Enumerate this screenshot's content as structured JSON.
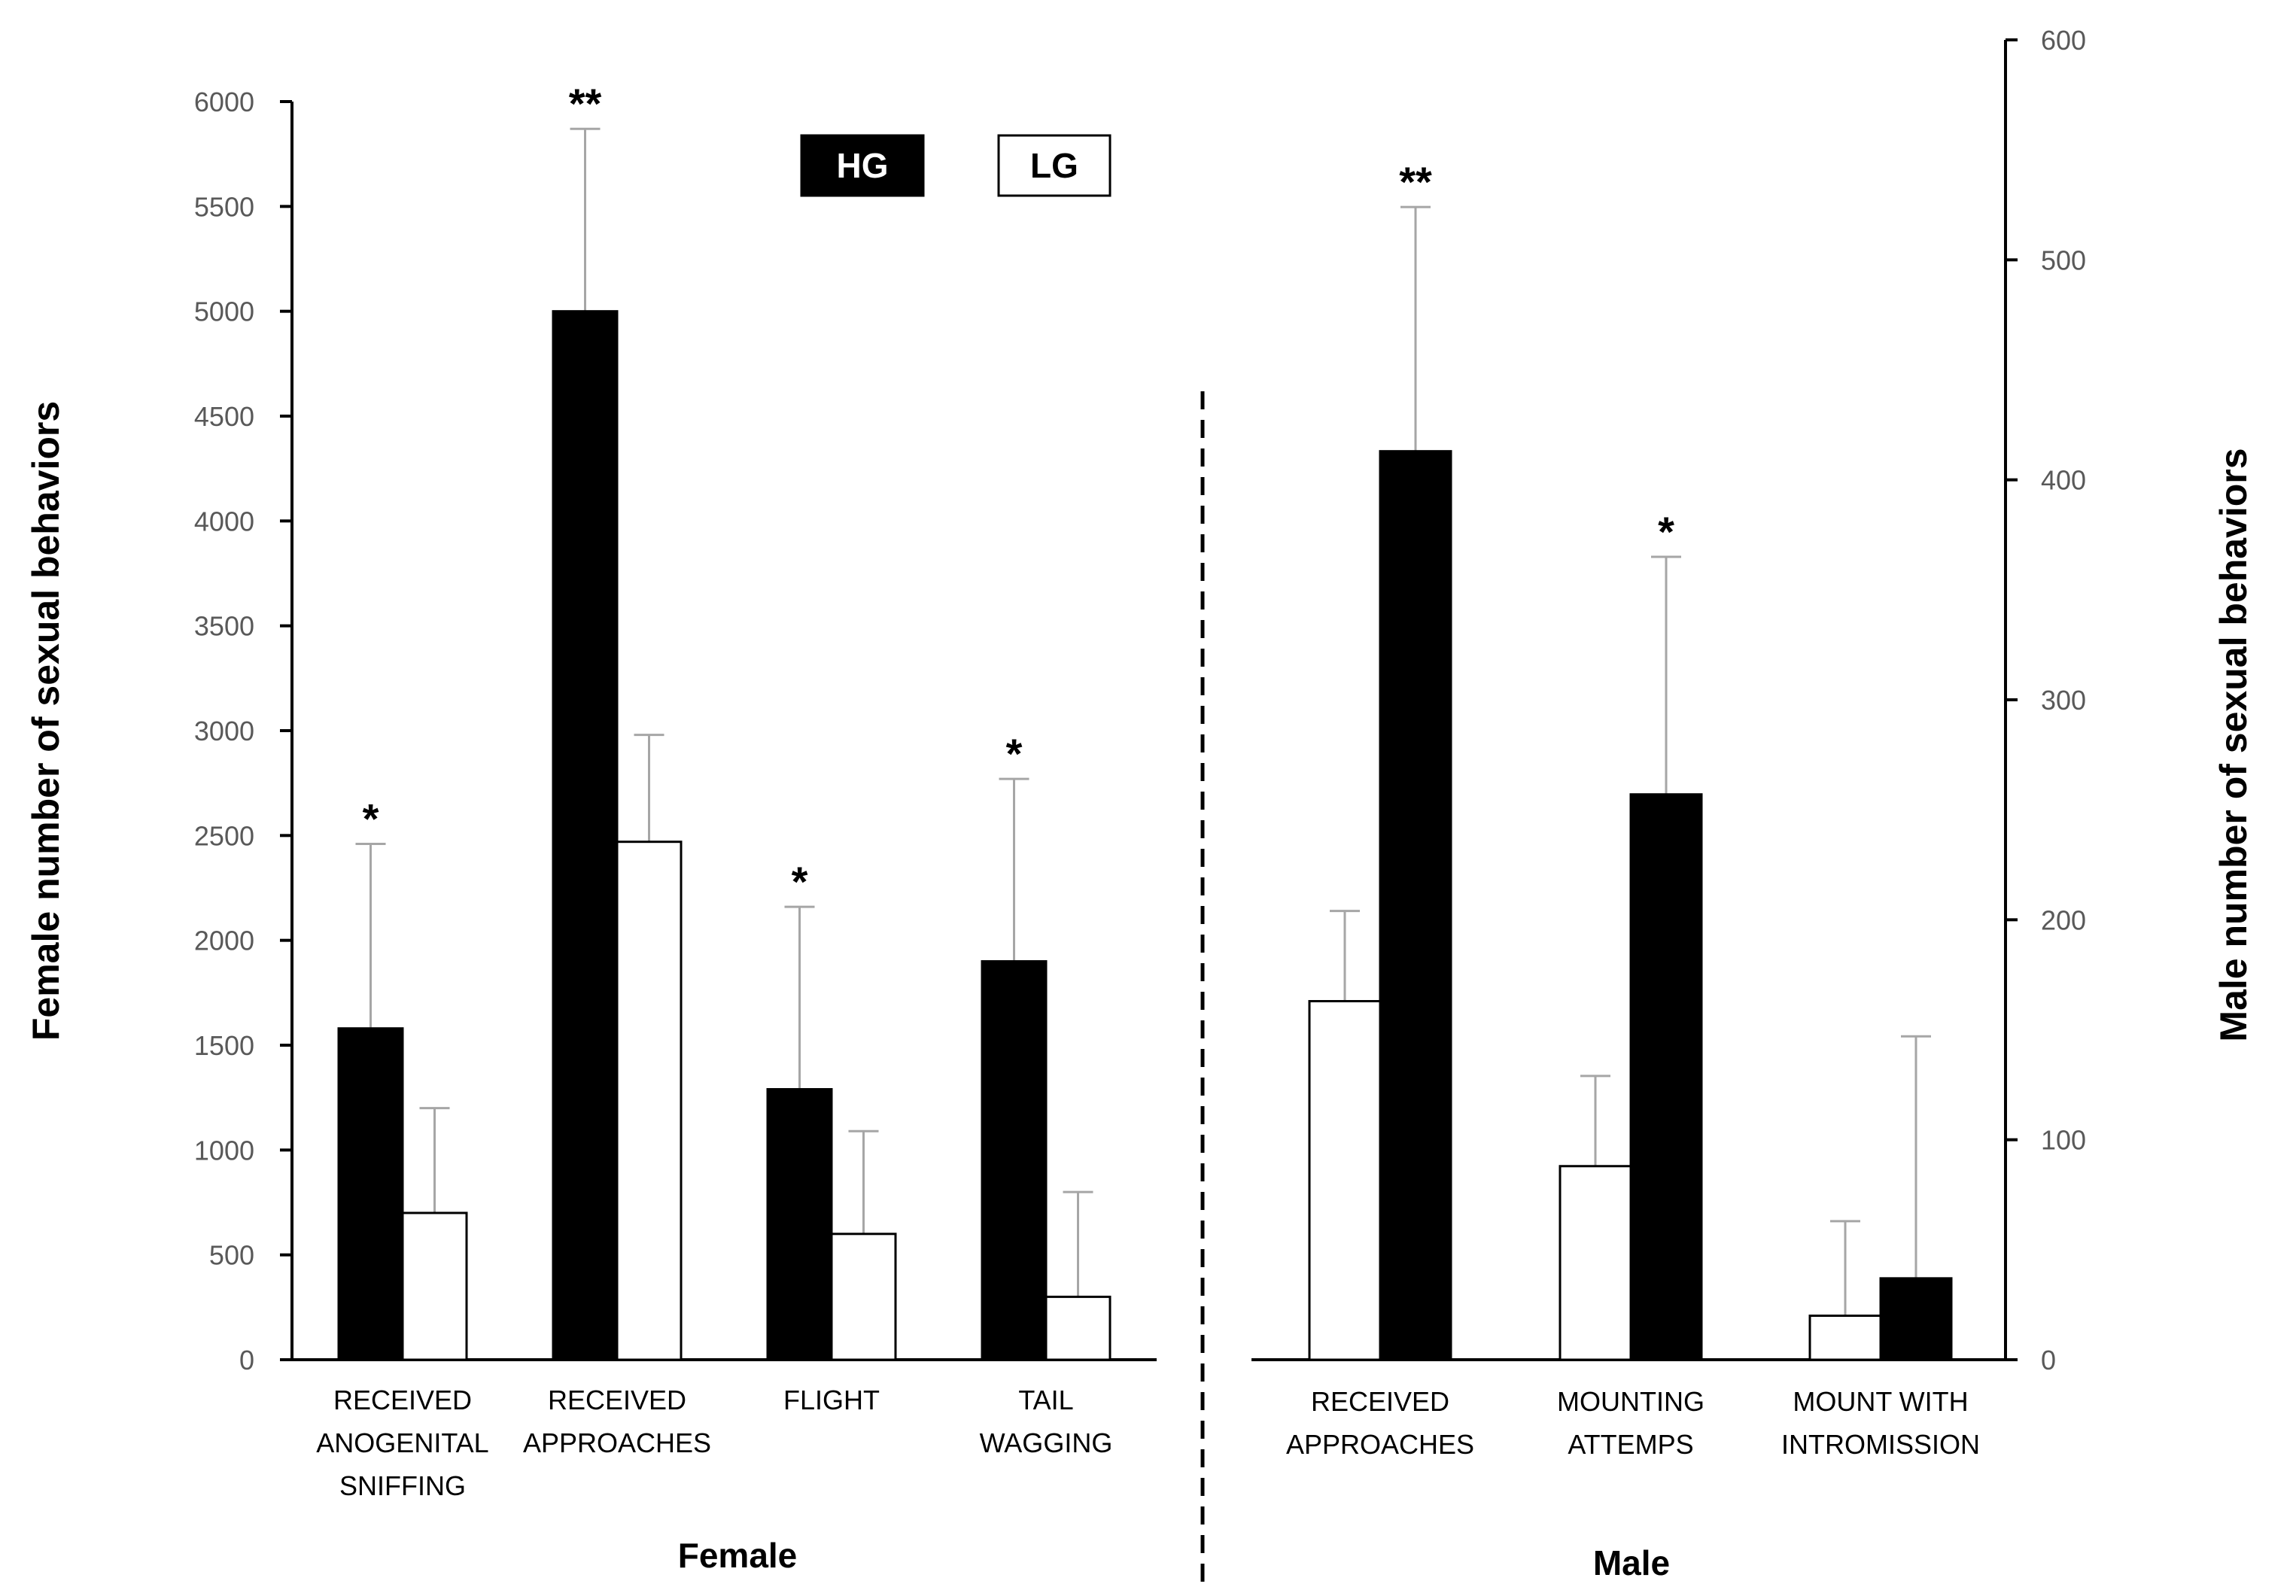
{
  "chart_data": [
    {
      "type": "bar",
      "panel": "Female",
      "xlabel": "Female",
      "ylabel": "Female number of sexual behaviors",
      "ylim": [
        0,
        6000
      ],
      "yticks": [
        0,
        500,
        1000,
        1500,
        2000,
        2500,
        3000,
        3500,
        4000,
        4500,
        5000,
        5500,
        6000
      ],
      "categories": [
        [
          "RECEIVED",
          "ANOGENITAL",
          "SNIFFING"
        ],
        [
          "RECEIVED",
          "APPROACHES"
        ],
        [
          "FLIGHT"
        ],
        [
          "TAIL",
          "WAGGING"
        ]
      ],
      "series": [
        {
          "name": "HG",
          "color": "#000000",
          "values": [
            1580,
            5000,
            1290,
            1900
          ],
          "errors": [
            880,
            870,
            870,
            870
          ]
        },
        {
          "name": "LG",
          "color": "#ffffff",
          "values": [
            700,
            2470,
            600,
            300
          ],
          "errors": [
            500,
            510,
            490,
            500
          ]
        }
      ],
      "significance": [
        "*",
        "**",
        "*",
        "*"
      ]
    },
    {
      "type": "bar",
      "panel": "Male",
      "xlabel": "Male",
      "ylabel": "Male number of sexual behaviors",
      "ylim": [
        0,
        600
      ],
      "yticks": [
        0,
        100,
        200,
        300,
        400,
        500,
        600
      ],
      "categories": [
        [
          "RECEIVED",
          "APPROACHES"
        ],
        [
          "MOUNTING",
          "ATTEMPS"
        ],
        [
          "MOUNT WITH",
          "INTROMISSION"
        ]
      ],
      "series": [
        {
          "name": "LG",
          "color": "#ffffff",
          "values": [
            163,
            88,
            20
          ],
          "errors": [
            41,
            41,
            43
          ]
        },
        {
          "name": "HG",
          "color": "#000000",
          "values": [
            413,
            257,
            37
          ],
          "errors": [
            111,
            108,
            110
          ]
        }
      ],
      "significance": [
        "**",
        "*",
        ""
      ]
    }
  ],
  "legend": [
    {
      "label": "HG",
      "fill": "#000000",
      "text_color": "#ffffff"
    },
    {
      "label": "LG",
      "fill": "#ffffff",
      "text_color": "#000000"
    }
  ]
}
